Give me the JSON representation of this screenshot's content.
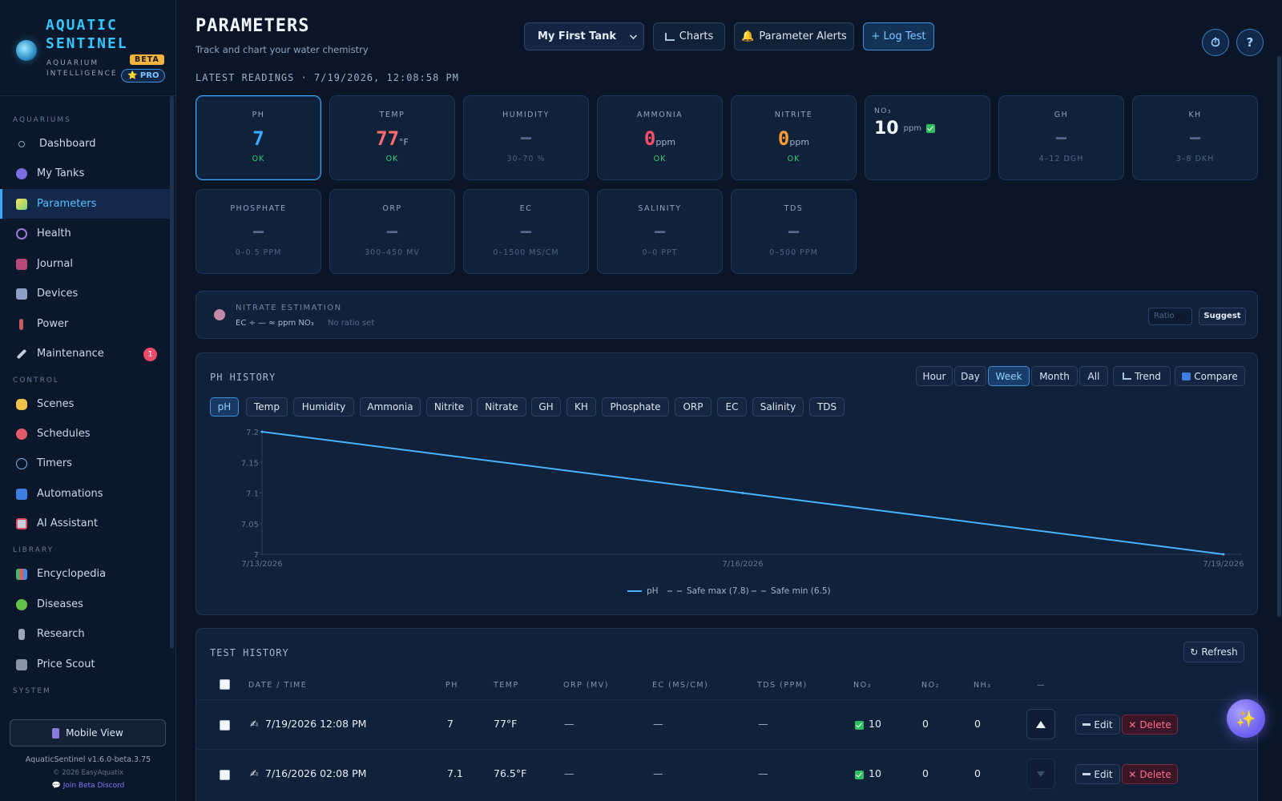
{
  "brand": {
    "name": "AQUATIC SENTINEL",
    "subtitle": "AQUARIUM INTELLIGENCE",
    "beta": "BETA",
    "pro": "⭐ PRO"
  },
  "sidebar": {
    "sections": {
      "aquariums": "AQUARIUMS",
      "control": "CONTROL",
      "library": "LIBRARY",
      "system": "SYSTEM"
    },
    "items": [
      {
        "label": "Dashboard",
        "icon": "circle-icon"
      },
      {
        "label": "My Tanks",
        "icon": "tank-icon"
      },
      {
        "label": "Parameters",
        "icon": "test-tube-icon"
      },
      {
        "label": "Health",
        "icon": "stethoscope-icon"
      },
      {
        "label": "Journal",
        "icon": "journal-icon"
      },
      {
        "label": "Devices",
        "icon": "devices-icon"
      },
      {
        "label": "Power",
        "icon": "plug-icon"
      },
      {
        "label": "Maintenance",
        "icon": "wrench-icon",
        "badge": "1"
      },
      {
        "label": "Scenes",
        "icon": "hand-icon"
      },
      {
        "label": "Schedules",
        "icon": "alarm-icon"
      },
      {
        "label": "Timers",
        "icon": "stopwatch-icon"
      },
      {
        "label": "Automations",
        "icon": "automation-icon"
      },
      {
        "label": "AI Assistant",
        "icon": "robot-icon"
      },
      {
        "label": "Encyclopedia",
        "icon": "books-icon"
      },
      {
        "label": "Diseases",
        "icon": "microbe-icon"
      },
      {
        "label": "Research",
        "icon": "microscope-icon"
      },
      {
        "label": "Price Scout",
        "icon": "register-icon"
      }
    ],
    "mobile_view": "Mobile View",
    "version": "AquaticSentinel v1.6.0-beta.3.75",
    "copyright": "© 2026 EasyAquatix",
    "discord": "Join Beta Discord"
  },
  "header": {
    "title": "PARAMETERS",
    "subtitle": "Track and chart your water chemistry",
    "tank": "My First Tank",
    "charts": "Charts",
    "alerts": "Parameter Alerts",
    "log_test": "+ Log Test",
    "help": "?"
  },
  "latest": {
    "label": "LATEST READINGS · 7/19/2026, 12:08:58 PM",
    "cards": [
      {
        "label": "PH",
        "value": "7",
        "unit": "",
        "status": "OK",
        "color": "#3aa9ff"
      },
      {
        "label": "TEMP",
        "value": "77",
        "unit": "°F",
        "status": "OK",
        "color": "#ff6b6b"
      },
      {
        "label": "HUMIDITY",
        "value": "—",
        "unit": "",
        "range": "30–70 %"
      },
      {
        "label": "AMMONIA",
        "value": "0",
        "unit": "ppm",
        "status": "OK",
        "color": "#ff4d6d"
      },
      {
        "label": "NITRITE",
        "value": "0",
        "unit": "ppm",
        "status": "OK",
        "color": "#ff9a2f"
      },
      {
        "label": "NO₃",
        "value": "10",
        "unit": "ppm"
      },
      {
        "label": "GH",
        "value": "—",
        "range": "4–12 DGH"
      },
      {
        "label": "KH",
        "value": "—",
        "range": "3–8 DKH"
      },
      {
        "label": "PHOSPHATE",
        "value": "—",
        "range": "0–0.5 PPM"
      },
      {
        "label": "ORP",
        "value": "—",
        "range": "300–450 MV"
      },
      {
        "label": "EC",
        "value": "—",
        "range": "0–1500 MS/CM"
      },
      {
        "label": "SALINITY",
        "value": "—",
        "range": "0–0 PPT"
      },
      {
        "label": "TDS",
        "value": "—",
        "range": "0–500 PPM"
      }
    ]
  },
  "estimation": {
    "title": "NITRATE ESTIMATION",
    "formula": "EC ÷ — ≈ ppm NO₃",
    "note": "No ratio set",
    "ratio_placeholder": "Ratio",
    "suggest": "Suggest"
  },
  "history": {
    "title": "PH HISTORY",
    "ranges": [
      "Hour",
      "Day",
      "Week",
      "Month",
      "All"
    ],
    "active_range": "Week",
    "trend": "Trend",
    "compare": "Compare",
    "chips": [
      "pH",
      "Temp",
      "Humidity",
      "Ammonia",
      "Nitrite",
      "Nitrate",
      "GH",
      "KH",
      "Phosphate",
      "ORP",
      "EC",
      "Salinity",
      "TDS"
    ],
    "legend": {
      "ph": "pH",
      "max": "Safe max (7.8)",
      "min": "Safe min (6.5)"
    }
  },
  "chart_data": {
    "type": "line",
    "x": [
      "7/13/2026",
      "7/16/2026",
      "7/19/2026"
    ],
    "series": [
      {
        "name": "pH",
        "values": [
          7.2,
          7.1,
          7.0
        ],
        "color": "#4ab4ff"
      }
    ],
    "yticks": [
      "7",
      "7.05",
      "7.1",
      "7.15",
      "7.2"
    ],
    "ylim": [
      7,
      7.2
    ]
  },
  "tests": {
    "title": "TEST HISTORY",
    "refresh": "Refresh",
    "columns": [
      "DATE / TIME",
      "PH",
      "TEMP",
      "ORP (MV)",
      "EC (MS/CM)",
      "TDS (PPM)",
      "NO₃",
      "NO₂",
      "NH₃",
      "—"
    ],
    "rows": [
      {
        "date": "7/19/2026 12:08 PM",
        "ph": "7",
        "temp": "77°F",
        "orp": "—",
        "ec": "—",
        "tds": "—",
        "no3": "10",
        "no2": "0",
        "nh3": "0"
      },
      {
        "date": "7/16/2026 02:08 PM",
        "ph": "7.1",
        "temp": "76.5°F",
        "orp": "—",
        "ec": "—",
        "tds": "—",
        "no3": "10",
        "no2": "0",
        "nh3": "0"
      }
    ],
    "edit": "Edit",
    "delete": "Delete"
  }
}
